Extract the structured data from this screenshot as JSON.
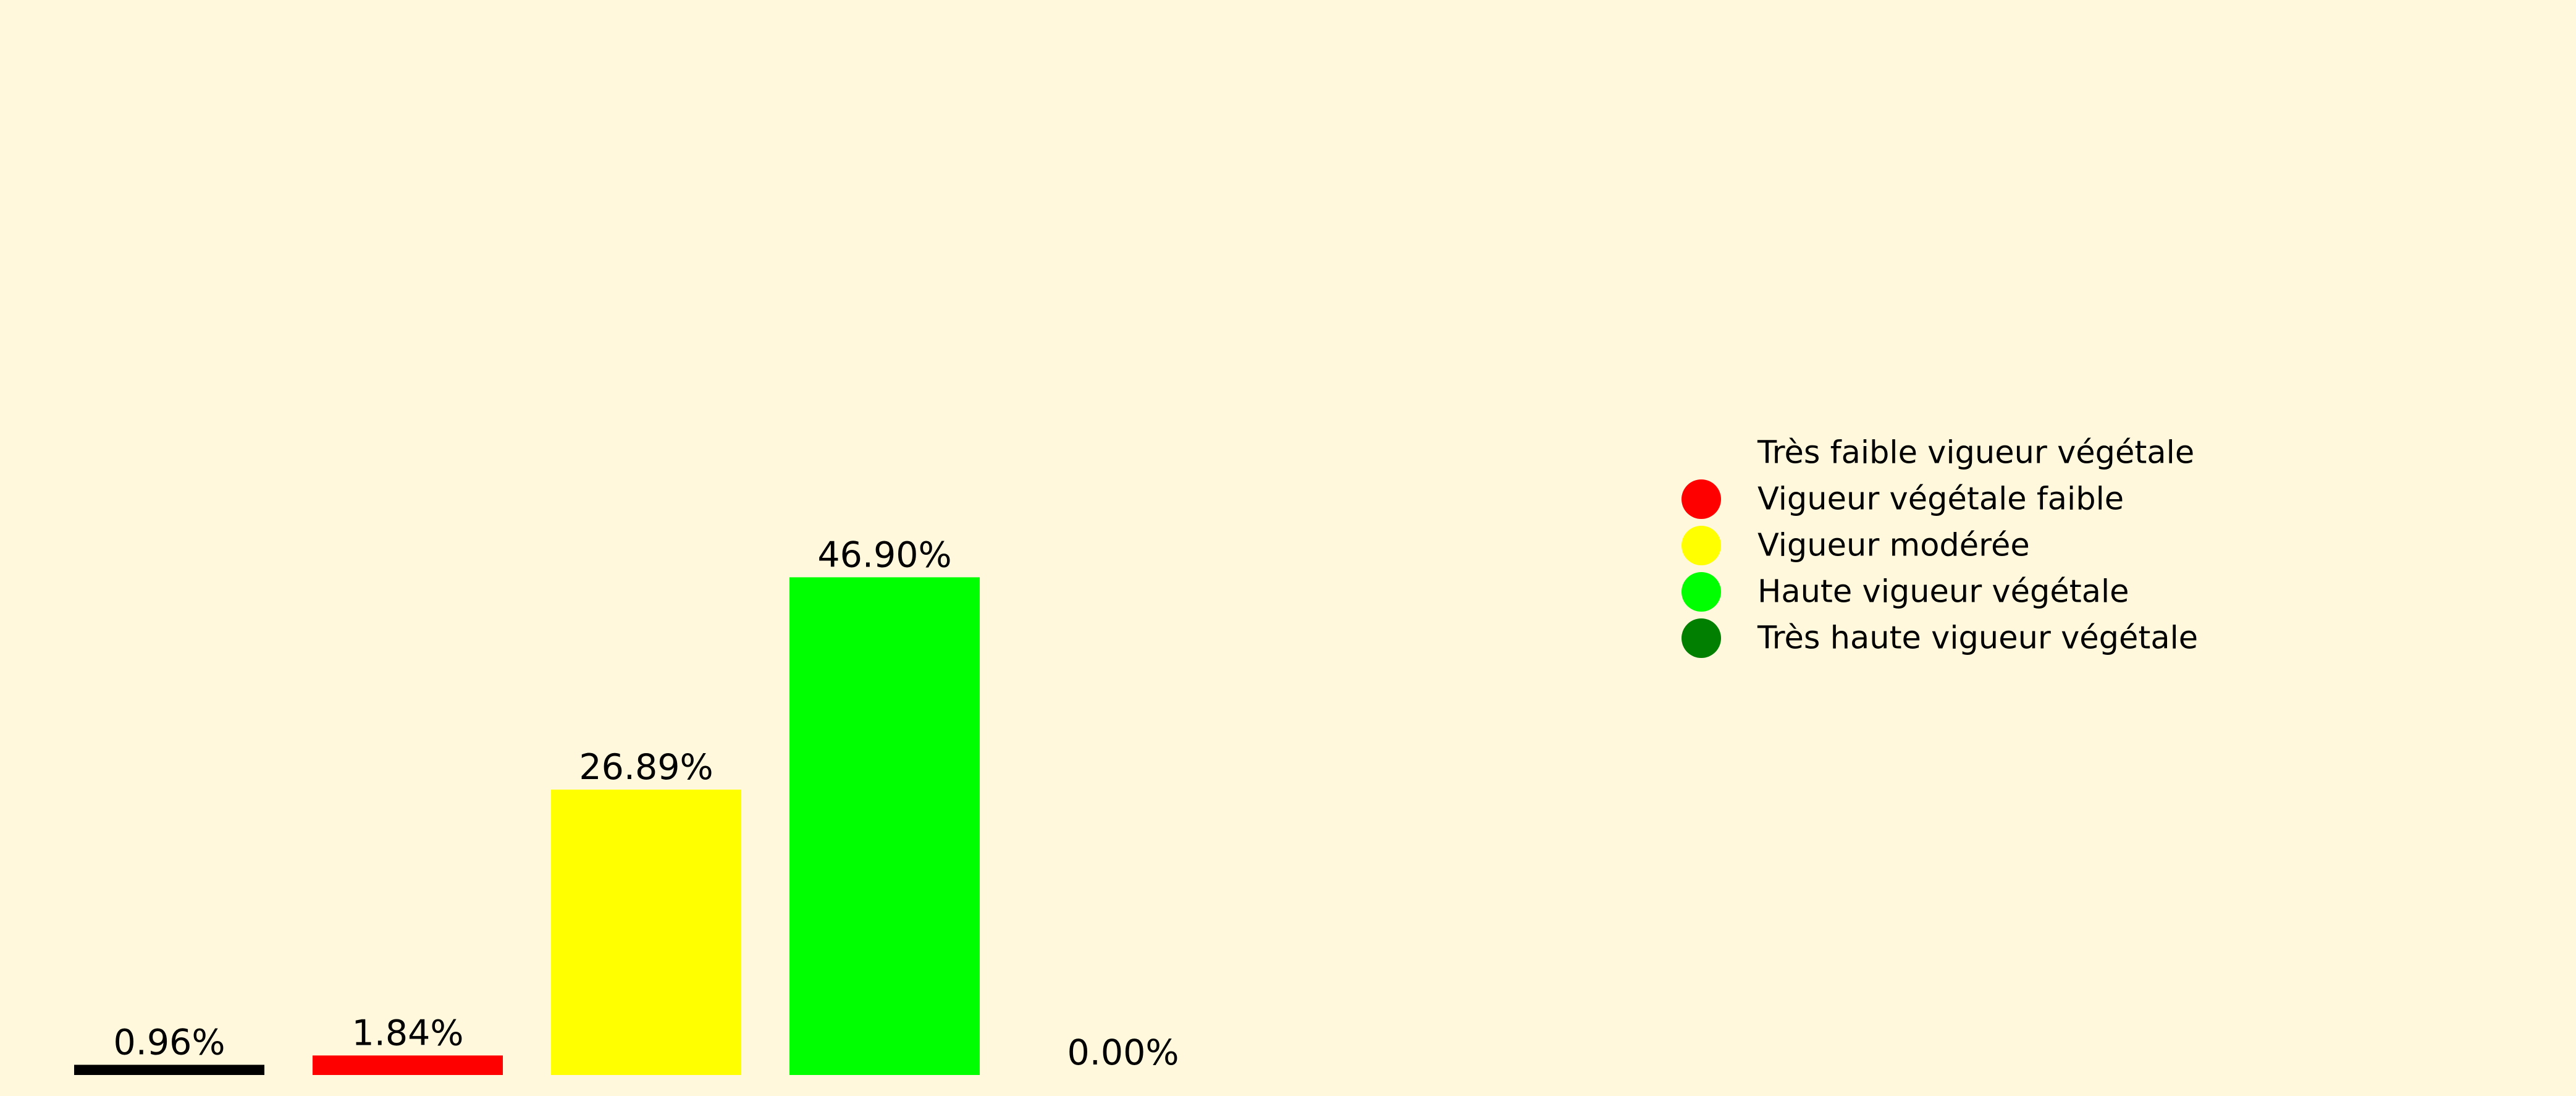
{
  "chart_data": {
    "type": "bar",
    "categories": [
      "Très faible vigueur végétale",
      "Vigueur végétale faible",
      "Vigueur modérée",
      "Haute vigueur végétale",
      "Très haute vigueur végétale"
    ],
    "values": [
      0.96,
      1.84,
      26.89,
      46.9,
      0.0
    ],
    "value_labels": [
      "0.96%",
      "1.84%",
      "26.89%",
      "46.90%",
      "0.00%"
    ],
    "colors": [
      "#000000",
      "#FF0000",
      "#FFFF00",
      "#00FF00",
      "#007F00"
    ],
    "legend": {
      "placement": "right",
      "entries": [
        "Très faible vigueur végétale",
        "Vigueur végétale faible",
        "Vigueur modérée",
        "Haute vigueur végétale",
        "Très haute vigueur végétale"
      ]
    },
    "title": "",
    "xlabel": "",
    "ylabel": "",
    "ylim": [
      0,
      100
    ],
    "grid": false,
    "axes_visible": false,
    "background": "#FFF8DC"
  }
}
